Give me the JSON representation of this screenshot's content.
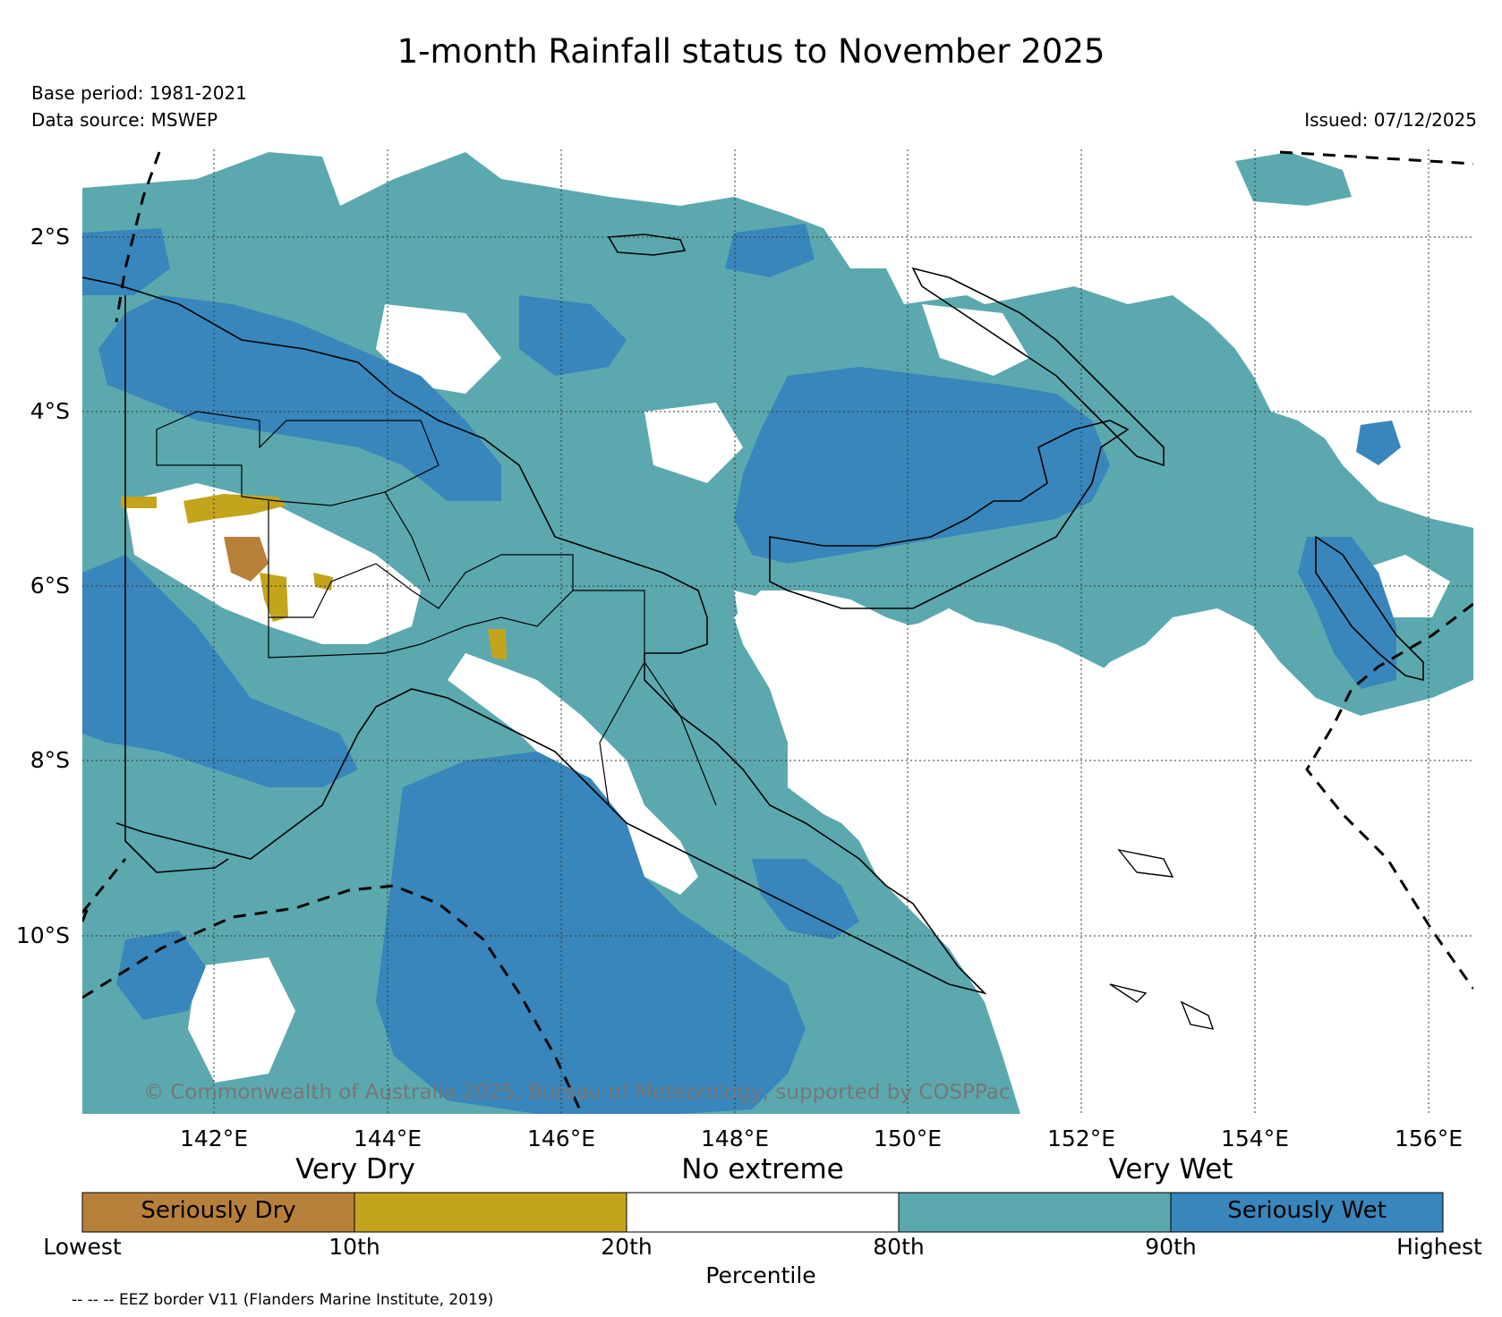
{
  "title": "1-month Rainfall status to November 2025",
  "base_period": "Base period: 1981-2021",
  "data_source": "Data source: MSWEP",
  "issued": "Issued: 07/12/2025",
  "copyright": "© Commonwealth of Australia 2025, Bureau of Meteorology, supported by COSPPac",
  "map": {
    "region": "Papua New Guinea",
    "lat_ticks": [
      "2°S",
      "4°S",
      "6°S",
      "8°S",
      "10°S"
    ],
    "lon_ticks": [
      "142°E",
      "144°E",
      "146°E",
      "148°E",
      "150°E",
      "152°E",
      "154°E",
      "156°E"
    ],
    "lat_range": [
      -11.6,
      -0.6
    ],
    "lon_range": [
      140.4,
      156.5
    ],
    "colors": {
      "seriously_dry": "#b7803a",
      "very_dry": "#c4a41c",
      "no_extreme": "#ffffff",
      "very_wet": "#5ba9af",
      "seriously_wet": "#3886bb"
    }
  },
  "legend": {
    "categories": [
      "Very Dry",
      "No extreme",
      "Very Wet"
    ],
    "segments": [
      {
        "label": "Seriously Dry",
        "color": "#b7803a"
      },
      {
        "label": "",
        "color": "#c4a41c"
      },
      {
        "label": "",
        "color": "#ffffff"
      },
      {
        "label": "",
        "color": "#5ba9af"
      },
      {
        "label": "Seriously Wet",
        "color": "#3886bb"
      }
    ],
    "percentile_ticks": [
      "Lowest",
      "10th",
      "20th",
      "80th",
      "90th",
      "Highest"
    ],
    "axis_title": "Percentile"
  },
  "eez_note": "-- -- -- EEZ border V11 (Flanders Marine Institute, 2019)"
}
